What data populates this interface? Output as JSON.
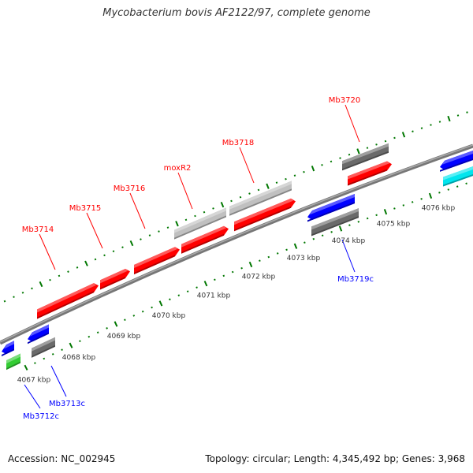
{
  "title": "Mycobacterium bovis AF2122/97, complete genome",
  "footer": {
    "accession": "Accession: NC_002945",
    "topology": "Topology: circular; Length: 4,345,492 bp; Genes: 3,968"
  },
  "colors": {
    "forward_gene": "#ff0000",
    "reverse_gene": "#0000ff",
    "tick": "#007700",
    "backbone": "#888888",
    "forward_label": "#ff0000",
    "reverse_label": "#0000ff"
  },
  "genes": {
    "mb3712c": "Mb3712c",
    "mb3713c": "Mb3713c",
    "mb3714": "Mb3714",
    "mb3715": "Mb3715",
    "mb3716": "Mb3716",
    "moxr2": "moxR2",
    "mb3718": "Mb3718",
    "mb3719c": "Mb3719c",
    "mb3720": "Mb3720"
  },
  "kbp_labels": [
    "4067 kbp",
    "4068 kbp",
    "4069 kbp",
    "4070 kbp",
    "4071 kbp",
    "4072 kbp",
    "4073 kbp",
    "4074 kbp",
    "4075 kbp",
    "4076 kbp"
  ]
}
